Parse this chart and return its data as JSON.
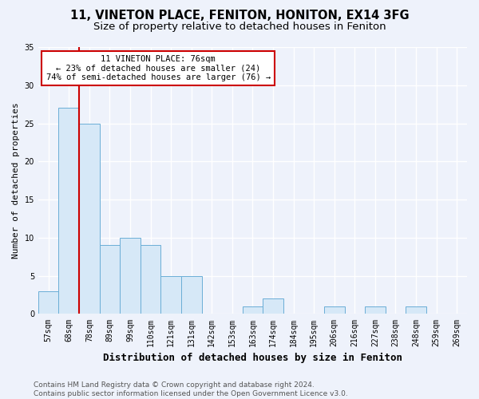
{
  "title1": "11, VINETON PLACE, FENITON, HONITON, EX14 3FG",
  "title2": "Size of property relative to detached houses in Feniton",
  "xlabel": "Distribution of detached houses by size in Feniton",
  "ylabel": "Number of detached properties",
  "categories": [
    "57sqm",
    "68sqm",
    "78sqm",
    "89sqm",
    "99sqm",
    "110sqm",
    "121sqm",
    "131sqm",
    "142sqm",
    "153sqm",
    "163sqm",
    "174sqm",
    "184sqm",
    "195sqm",
    "206sqm",
    "216sqm",
    "227sqm",
    "238sqm",
    "248sqm",
    "259sqm",
    "269sqm"
  ],
  "values": [
    3,
    27,
    25,
    9,
    10,
    9,
    5,
    5,
    0,
    0,
    1,
    2,
    0,
    0,
    1,
    0,
    1,
    0,
    1,
    0,
    0
  ],
  "bar_color": "#d6e8f7",
  "bar_edge_color": "#6baed6",
  "red_line_index": 2,
  "annotation_text": "11 VINETON PLACE: 76sqm\n← 23% of detached houses are smaller (24)\n74% of semi-detached houses are larger (76) →",
  "annotation_box_color": "#ffffff",
  "annotation_border_color": "#cc0000",
  "red_line_color": "#cc0000",
  "ylim": [
    0,
    35
  ],
  "yticks": [
    0,
    5,
    10,
    15,
    20,
    25,
    30,
    35
  ],
  "footer": "Contains HM Land Registry data © Crown copyright and database right 2024.\nContains public sector information licensed under the Open Government Licence v3.0.",
  "background_color": "#eef2fb",
  "grid_color": "#ffffff",
  "title1_fontsize": 10.5,
  "title2_fontsize": 9.5,
  "xlabel_fontsize": 9,
  "ylabel_fontsize": 8,
  "tick_fontsize": 7,
  "annot_fontsize": 7.5,
  "footer_fontsize": 6.5
}
